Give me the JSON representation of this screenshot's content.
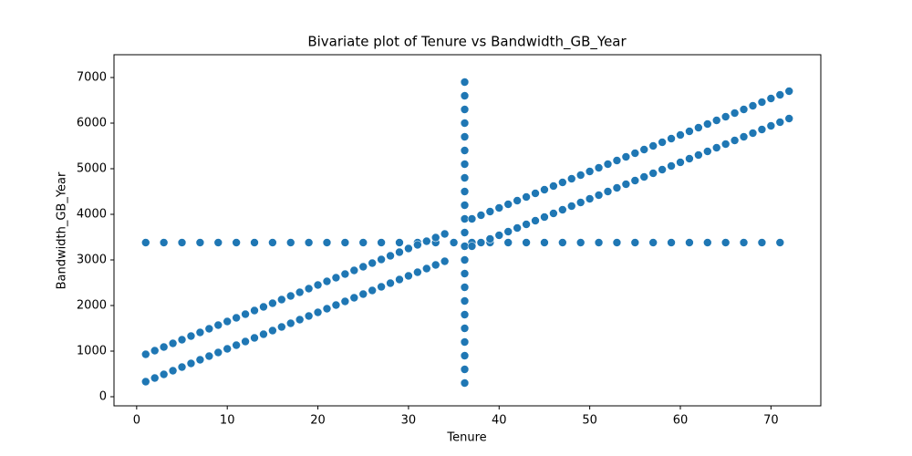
{
  "chart_data": {
    "type": "scatter",
    "title": "Bivariate plot of Tenure vs Bandwidth_GB_Year",
    "x_label": "Tenure",
    "y_label": "Bandwidth_GB_Year",
    "xlim": [
      -2.5,
      75.5
    ],
    "ylim": [
      -200,
      7500
    ],
    "xticks": [
      0,
      10,
      20,
      30,
      40,
      50,
      60,
      70
    ],
    "yticks": [
      0,
      1000,
      2000,
      3000,
      4000,
      5000,
      6000,
      7000
    ],
    "series": [
      {
        "color": "#1f77b4",
        "x": [
          1,
          3,
          5,
          7,
          9,
          11,
          13,
          15,
          17,
          19,
          21,
          23,
          25,
          27,
          29,
          31,
          33,
          35,
          37,
          39,
          41,
          43,
          45,
          47,
          49,
          51,
          53,
          55,
          57,
          59,
          61,
          63,
          65,
          67,
          69,
          71
        ],
        "values": [
          3380,
          3380,
          3380,
          3380,
          3380,
          3380,
          3380,
          3380,
          3380,
          3380,
          3380,
          3380,
          3380,
          3380,
          3380,
          3380,
          3380,
          3380,
          3380,
          3380,
          3380,
          3380,
          3380,
          3380,
          3380,
          3380,
          3380,
          3380,
          3380,
          3380,
          3380,
          3380,
          3380,
          3380,
          3380,
          3380
        ]
      },
      {
        "color": "#1f77b4",
        "x": [
          36.2,
          36.2,
          36.2,
          36.2,
          36.2,
          36.2,
          36.2,
          36.2,
          36.2,
          36.2,
          36.2,
          36.2,
          36.2,
          36.2,
          36.2,
          36.2,
          36.2,
          36.2,
          36.2,
          36.2,
          36.2,
          36.2,
          36.2
        ],
        "values": [
          300,
          600,
          900,
          1200,
          1500,
          1800,
          2100,
          2400,
          2700,
          3000,
          3300,
          3600,
          3900,
          4200,
          4500,
          4800,
          5100,
          5400,
          5700,
          6000,
          6300,
          6600,
          6900
        ]
      },
      {
        "color": "#1f77b4",
        "x": [
          1,
          1,
          2,
          2,
          3,
          3,
          4,
          4,
          5,
          5,
          6,
          6,
          7,
          7,
          8,
          8,
          9,
          9,
          10,
          10,
          11,
          11,
          12,
          12,
          13,
          13,
          14,
          14,
          15,
          15,
          16,
          16,
          17,
          17,
          18,
          18,
          19,
          19,
          20,
          20,
          21,
          21,
          22,
          22,
          23,
          23,
          24,
          24,
          25,
          25,
          26,
          26,
          27,
          27,
          28,
          28,
          29,
          29,
          30,
          30,
          31,
          31,
          32,
          32,
          33,
          33,
          34,
          34
        ],
        "values": [
          330,
          930,
          410,
          1010,
          490,
          1090,
          570,
          1170,
          650,
          1250,
          730,
          1330,
          810,
          1410,
          890,
          1490,
          970,
          1570,
          1050,
          1650,
          1130,
          1730,
          1210,
          1810,
          1290,
          1890,
          1370,
          1970,
          1450,
          2050,
          1530,
          2130,
          1610,
          2210,
          1690,
          2290,
          1770,
          2370,
          1850,
          2450,
          1930,
          2530,
          2010,
          2610,
          2090,
          2690,
          2170,
          2770,
          2250,
          2850,
          2330,
          2930,
          2410,
          3010,
          2490,
          3090,
          2570,
          3170,
          2650,
          3250,
          2730,
          3330,
          2810,
          3410,
          2890,
          3490,
          2970,
          3570
        ]
      },
      {
        "color": "#1f77b4",
        "x": [
          37,
          37,
          38,
          38,
          39,
          39,
          40,
          40,
          41,
          41,
          42,
          42,
          43,
          43,
          44,
          44,
          45,
          45,
          46,
          46,
          47,
          47,
          48,
          48,
          49,
          49,
          50,
          50,
          51,
          51,
          52,
          52,
          53,
          53,
          54,
          54,
          55,
          55,
          56,
          56,
          57,
          57,
          58,
          58,
          59,
          59,
          60,
          60,
          61,
          61,
          62,
          62,
          63,
          63,
          64,
          64,
          65,
          65,
          66,
          66,
          67,
          67,
          68,
          68,
          69,
          69,
          70,
          70,
          71,
          71,
          72,
          72
        ],
        "values": [
          3300,
          3900,
          3380,
          3980,
          3460,
          4060,
          3540,
          4140,
          3620,
          4220,
          3700,
          4300,
          3780,
          4380,
          3860,
          4460,
          3940,
          4540,
          4020,
          4620,
          4100,
          4700,
          4180,
          4780,
          4260,
          4860,
          4340,
          4940,
          4420,
          5020,
          4500,
          5100,
          4580,
          5180,
          4660,
          5260,
          4740,
          5340,
          4820,
          5420,
          4900,
          5500,
          4980,
          5580,
          5060,
          5660,
          5140,
          5740,
          5220,
          5820,
          5300,
          5900,
          5380,
          5980,
          5460,
          6060,
          5540,
          6140,
          5620,
          6220,
          5700,
          6300,
          5780,
          6380,
          5860,
          6460,
          5940,
          6540,
          6020,
          6620,
          6100,
          6700
        ]
      }
    ]
  }
}
